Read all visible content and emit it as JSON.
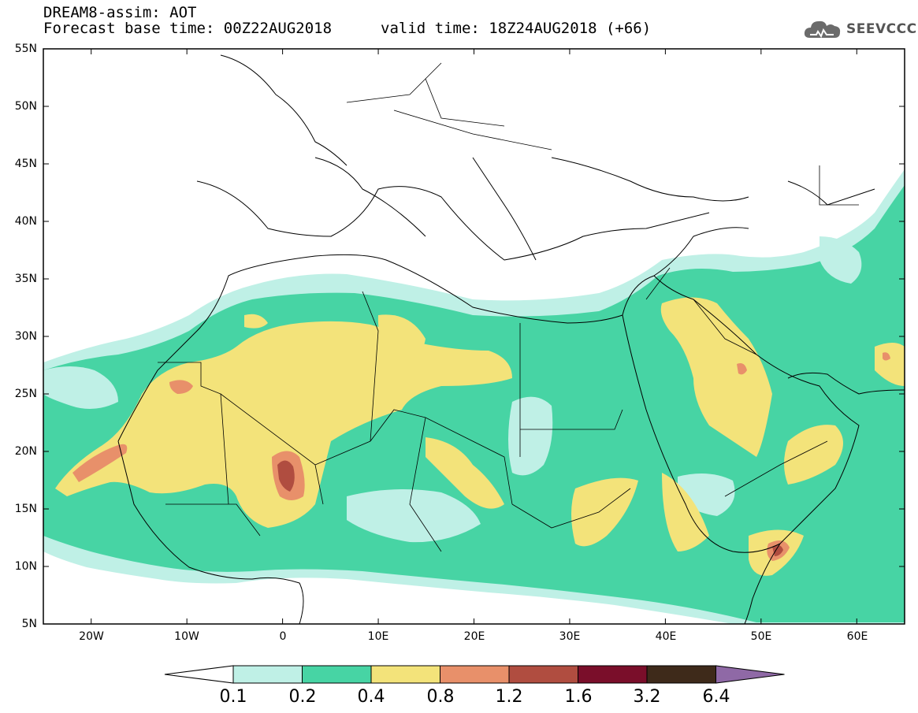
{
  "header": {
    "title_line1": "DREAM8-assim: AOT",
    "title_line2": "Forecast base time: 00Z22AUG2018",
    "valid_time": "valid time: 18Z24AUG2018 (+66)",
    "logo_text": "SEEVCCC",
    "logo_icon": "cloud-icon"
  },
  "map": {
    "projection": "lat-lon",
    "lon_range": [
      -25,
      65
    ],
    "lat_range": [
      5,
      55
    ],
    "lat_ticks": [
      "55N",
      "50N",
      "45N",
      "40N",
      "35N",
      "30N",
      "25N",
      "20N",
      "15N",
      "10N",
      "5N"
    ],
    "lon_ticks": [
      "20W",
      "10W",
      "0",
      "10E",
      "20E",
      "30E",
      "40E",
      "50E",
      "60E"
    ]
  },
  "colorbar": {
    "levels": [
      "0.1",
      "0.2",
      "0.4",
      "0.8",
      "1.2",
      "1.6",
      "3.2",
      "6.4"
    ],
    "colors": [
      "#ffffff",
      "#bff0e6",
      "#47d4a4",
      "#f3e37a",
      "#e8906a",
      "#b04d40",
      "#7a0e2a",
      "#3e2a1a",
      "#8f69a6"
    ]
  }
}
